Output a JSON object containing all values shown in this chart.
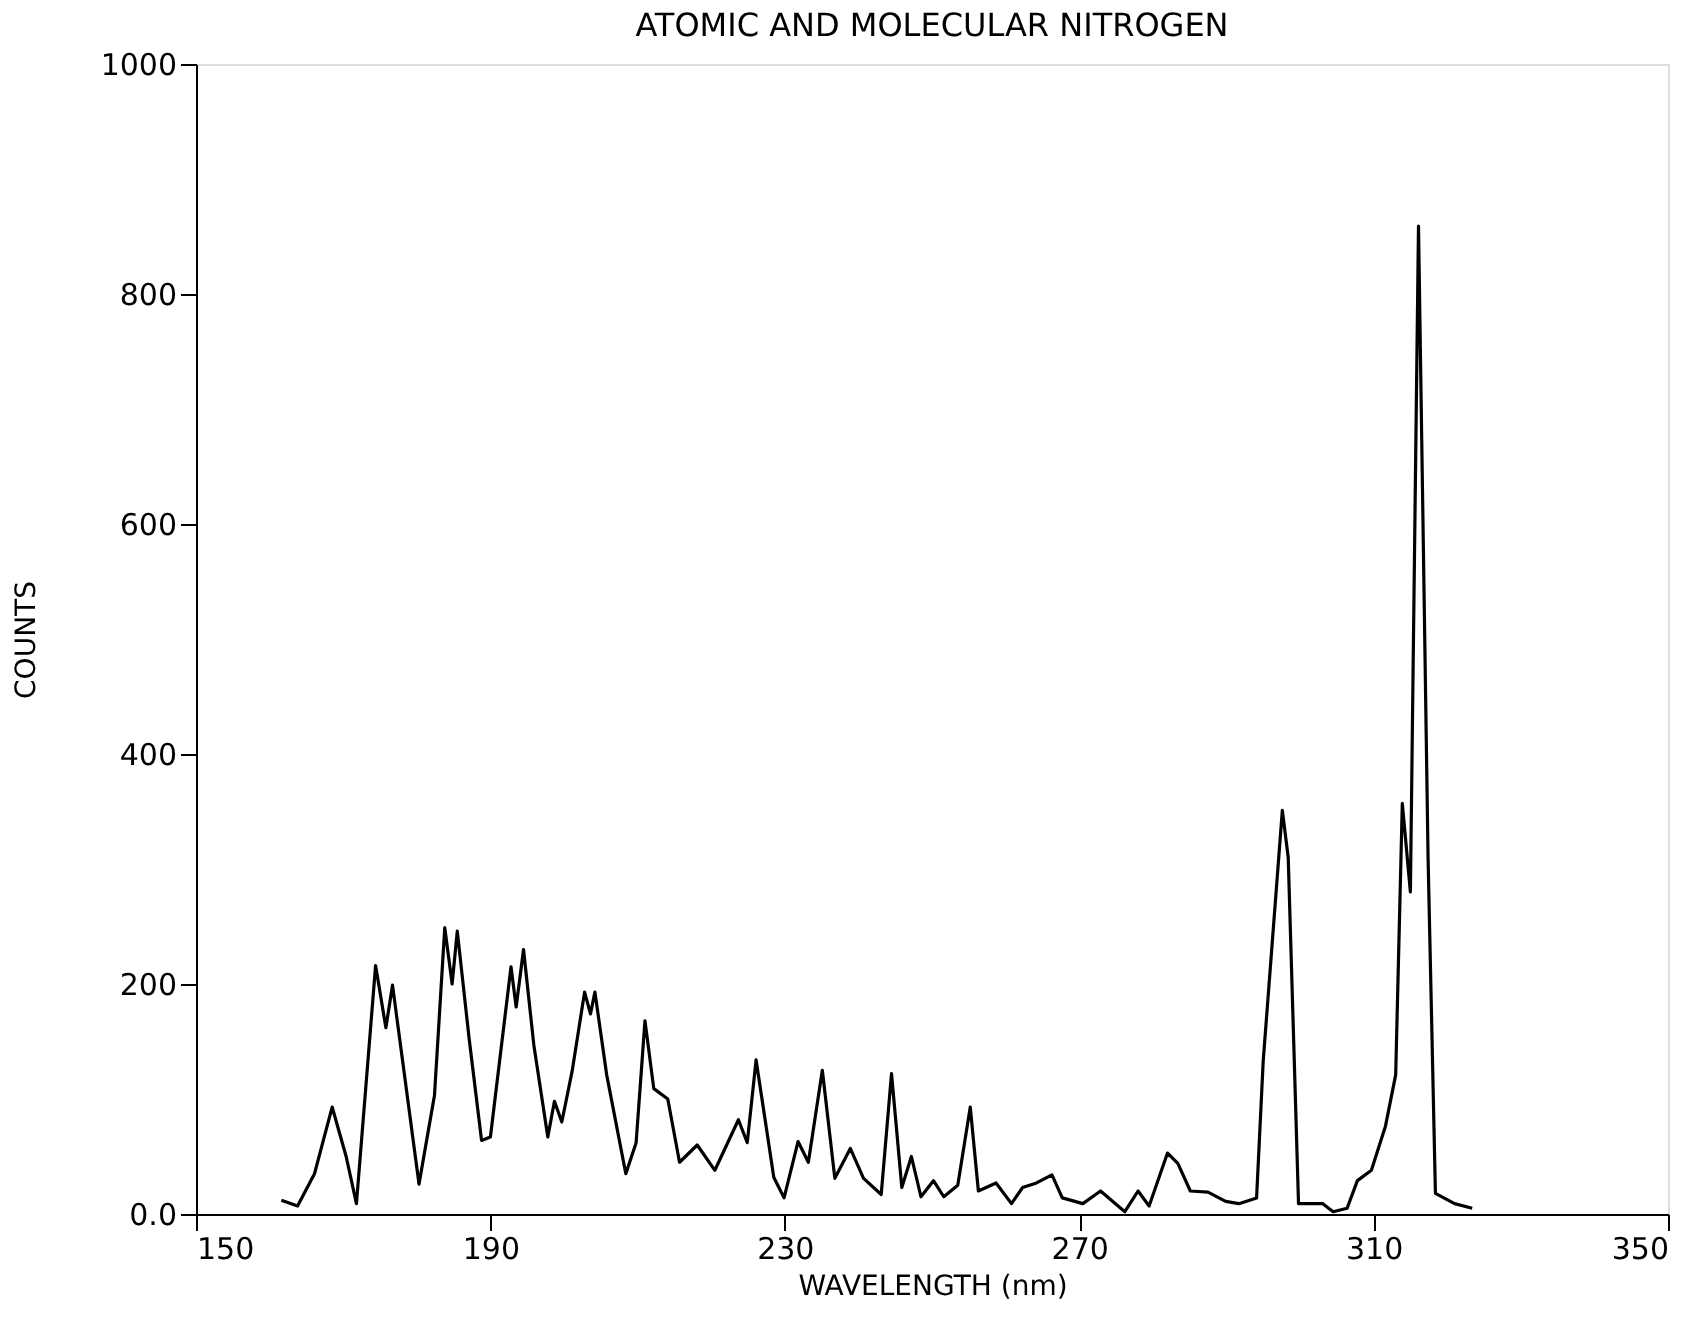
{
  "chart_data": {
    "type": "line",
    "title": "ATOMIC AND MOLECULAR NITROGEN",
    "xlabel": "WAVELENGTH (nm)",
    "ylabel": "COUNTS",
    "xlim": [
      150,
      350
    ],
    "xticks": [
      150,
      190,
      230,
      270,
      310,
      350
    ],
    "ylim": [
      0,
      1000
    ],
    "yticks": [
      {
        "value": 0,
        "label": "0.0"
      },
      200,
      400,
      600,
      800,
      1000
    ],
    "grid": false,
    "marker": "none",
    "line_style": "solid",
    "series": [
      {
        "color": "#000000",
        "x": [
          161.6,
          163.8,
          166.1,
          168.5,
          170.4,
          171.8,
          174.4,
          175.8,
          176.7,
          180.3,
          182.4,
          183.8,
          184.8,
          185.5,
          187.1,
          188.8,
          190.0,
          192.8,
          193.5,
          194.5,
          195.9,
          197.8,
          198.7,
          199.7,
          201.1,
          202.8,
          203.6,
          204.2,
          205.8,
          208.4,
          209.8,
          211.0,
          212.2,
          214.1,
          215.7,
          218.1,
          220.5,
          223.7,
          224.9,
          226.1,
          228.5,
          229.9,
          231.8,
          233.2,
          235.1,
          236.8,
          238.9,
          240.7,
          243.1,
          244.5,
          245.9,
          247.2,
          248.5,
          250.2,
          251.6,
          253.5,
          255.2,
          256.3,
          258.7,
          260.8,
          262.3,
          264.2,
          266.3,
          267.7,
          270.5,
          272.9,
          276.2,
          278.0,
          279.5,
          282.0,
          283.4,
          285.1,
          287.5,
          289.9,
          291.7,
          294.1,
          295.0,
          297.6,
          298.4,
          299.8,
          303.1,
          304.5,
          306.4,
          307.8,
          309.7,
          311.6,
          313.0,
          313.9,
          315.0,
          316.1,
          317.4,
          318.4,
          321.0,
          323.4
        ],
        "values": [
          12,
          7,
          35,
          93,
          50,
          9,
          216,
          162,
          199,
          26,
          103,
          249,
          200,
          246,
          153,
          64,
          67,
          215,
          180,
          230,
          147,
          67,
          98,
          80,
          124,
          193,
          174,
          193,
          121,
          35,
          62,
          168,
          109,
          100,
          45,
          60,
          38,
          82,
          62,
          134,
          32,
          14,
          63,
          45,
          125,
          31,
          57,
          31,
          17,
          122,
          23,
          50,
          15,
          29,
          15,
          25,
          93,
          20,
          27,
          9,
          23,
          27,
          34,
          14,
          9,
          20,
          2,
          20,
          7,
          53,
          44,
          20,
          19,
          11,
          9,
          14,
          133,
          351,
          310,
          9,
          9,
          2,
          5,
          29,
          38,
          76,
          121,
          357,
          280,
          859,
          310,
          18,
          9,
          5
        ]
      }
    ]
  }
}
